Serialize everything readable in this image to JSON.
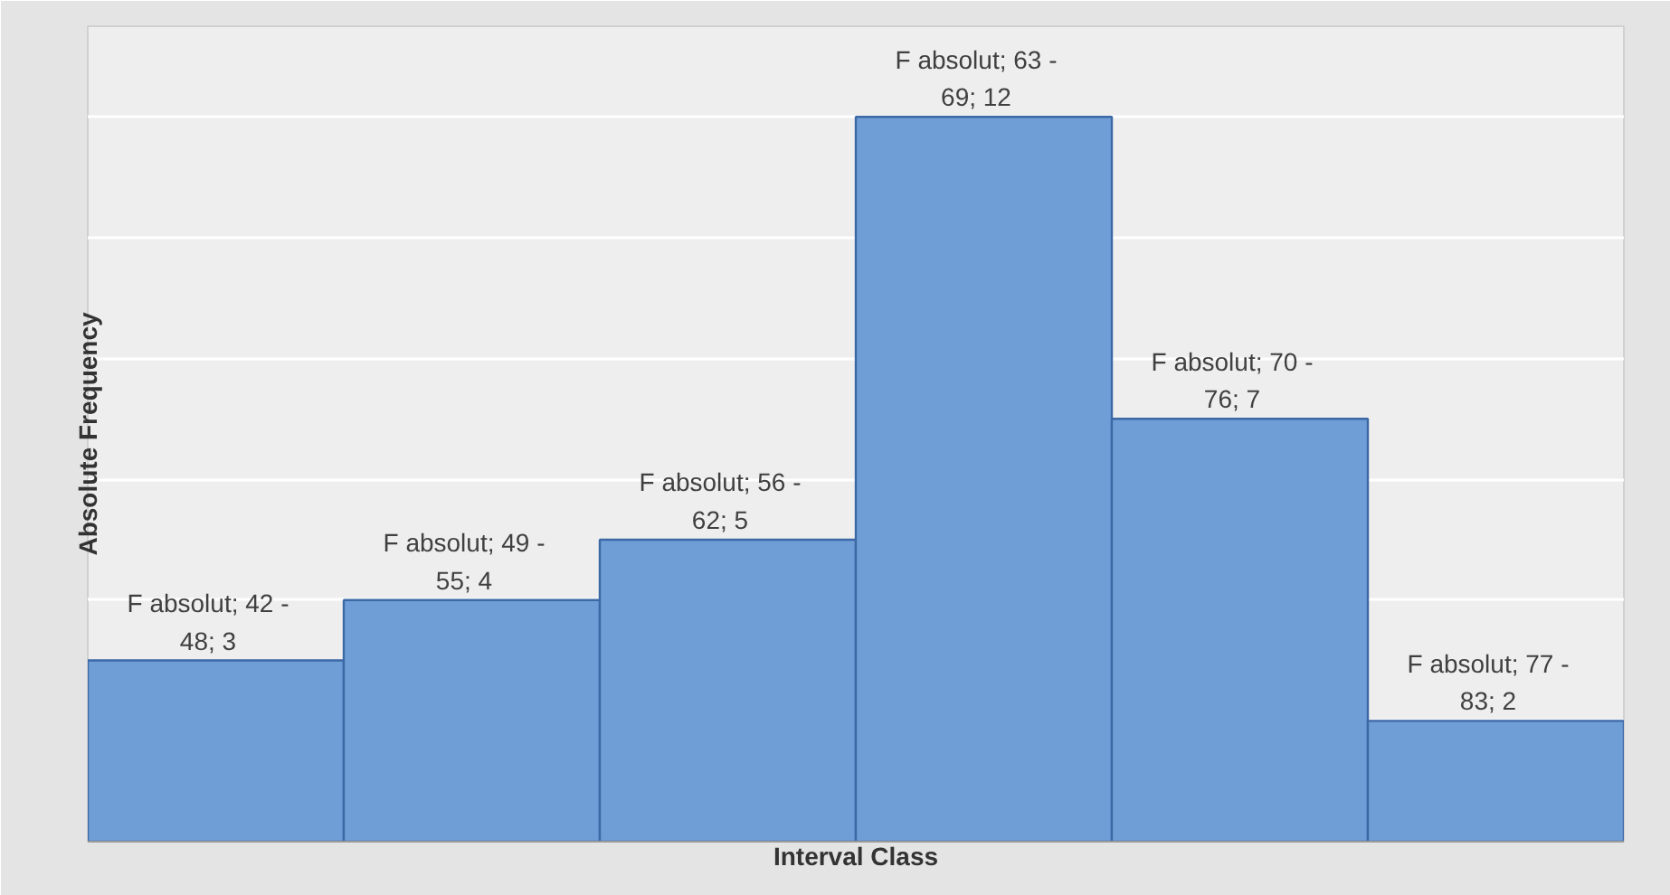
{
  "chart_data": {
    "type": "bar",
    "xlabel": "Interval Class",
    "ylabel": "Absolute Frequency",
    "categories": [
      null,
      null,
      null,
      null,
      null,
      null
    ],
    "values": [
      3,
      4,
      5,
      12,
      7,
      2
    ],
    "color": "#6f9ed6",
    "value_labels": [
      "F absolut; 42 - 48; 3",
      "F absolut; 49 - 55; 4",
      "F absolut; 56 - 62; 5",
      "F absolut; 63 - 69; 12",
      "F absolut; 70 - 76; 7",
      "F absolut; 77 - 83; 2"
    ],
    "ylim": [
      0,
      13.5
    ],
    "grid": "y"
  }
}
